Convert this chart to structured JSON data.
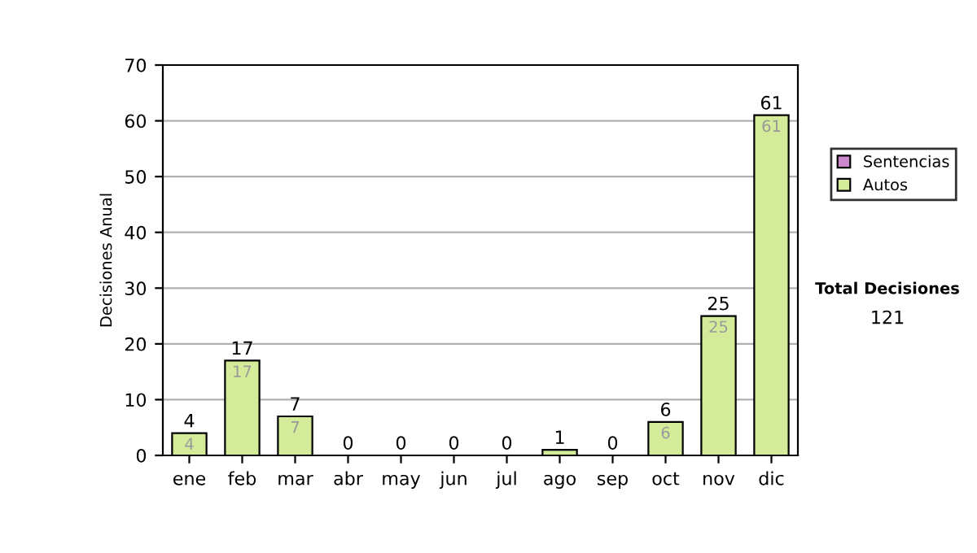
{
  "chart_data": {
    "type": "bar",
    "stacked": true,
    "ylabel": "Decisiones Anual",
    "categories": [
      "ene",
      "feb",
      "mar",
      "abr",
      "may",
      "jun",
      "jul",
      "ago",
      "sep",
      "oct",
      "nov",
      "dic"
    ],
    "series": [
      {
        "name": "Sentencias",
        "color": "#cc88cc",
        "values": [
          0,
          0,
          0,
          0,
          0,
          0,
          0,
          0,
          0,
          0,
          0,
          0
        ]
      },
      {
        "name": "Autos",
        "color": "#d4eb9a",
        "values": [
          4,
          17,
          7,
          0,
          0,
          0,
          0,
          1,
          0,
          6,
          25,
          61
        ],
        "value_labels": [
          "4",
          "17",
          "7",
          null,
          null,
          null,
          null,
          null,
          null,
          "6",
          "25",
          "61"
        ]
      }
    ],
    "totals": [
      "4",
      "17",
      "7",
      "0",
      "0",
      "0",
      "0",
      "1",
      "0",
      "6",
      "25",
      "61"
    ],
    "ylim": [
      0,
      70
    ],
    "yticks": [
      0,
      10,
      20,
      30,
      40,
      50,
      60,
      70
    ],
    "grid": "y",
    "legend": "right",
    "annotations": [
      "Total Decisiones",
      "121"
    ]
  }
}
